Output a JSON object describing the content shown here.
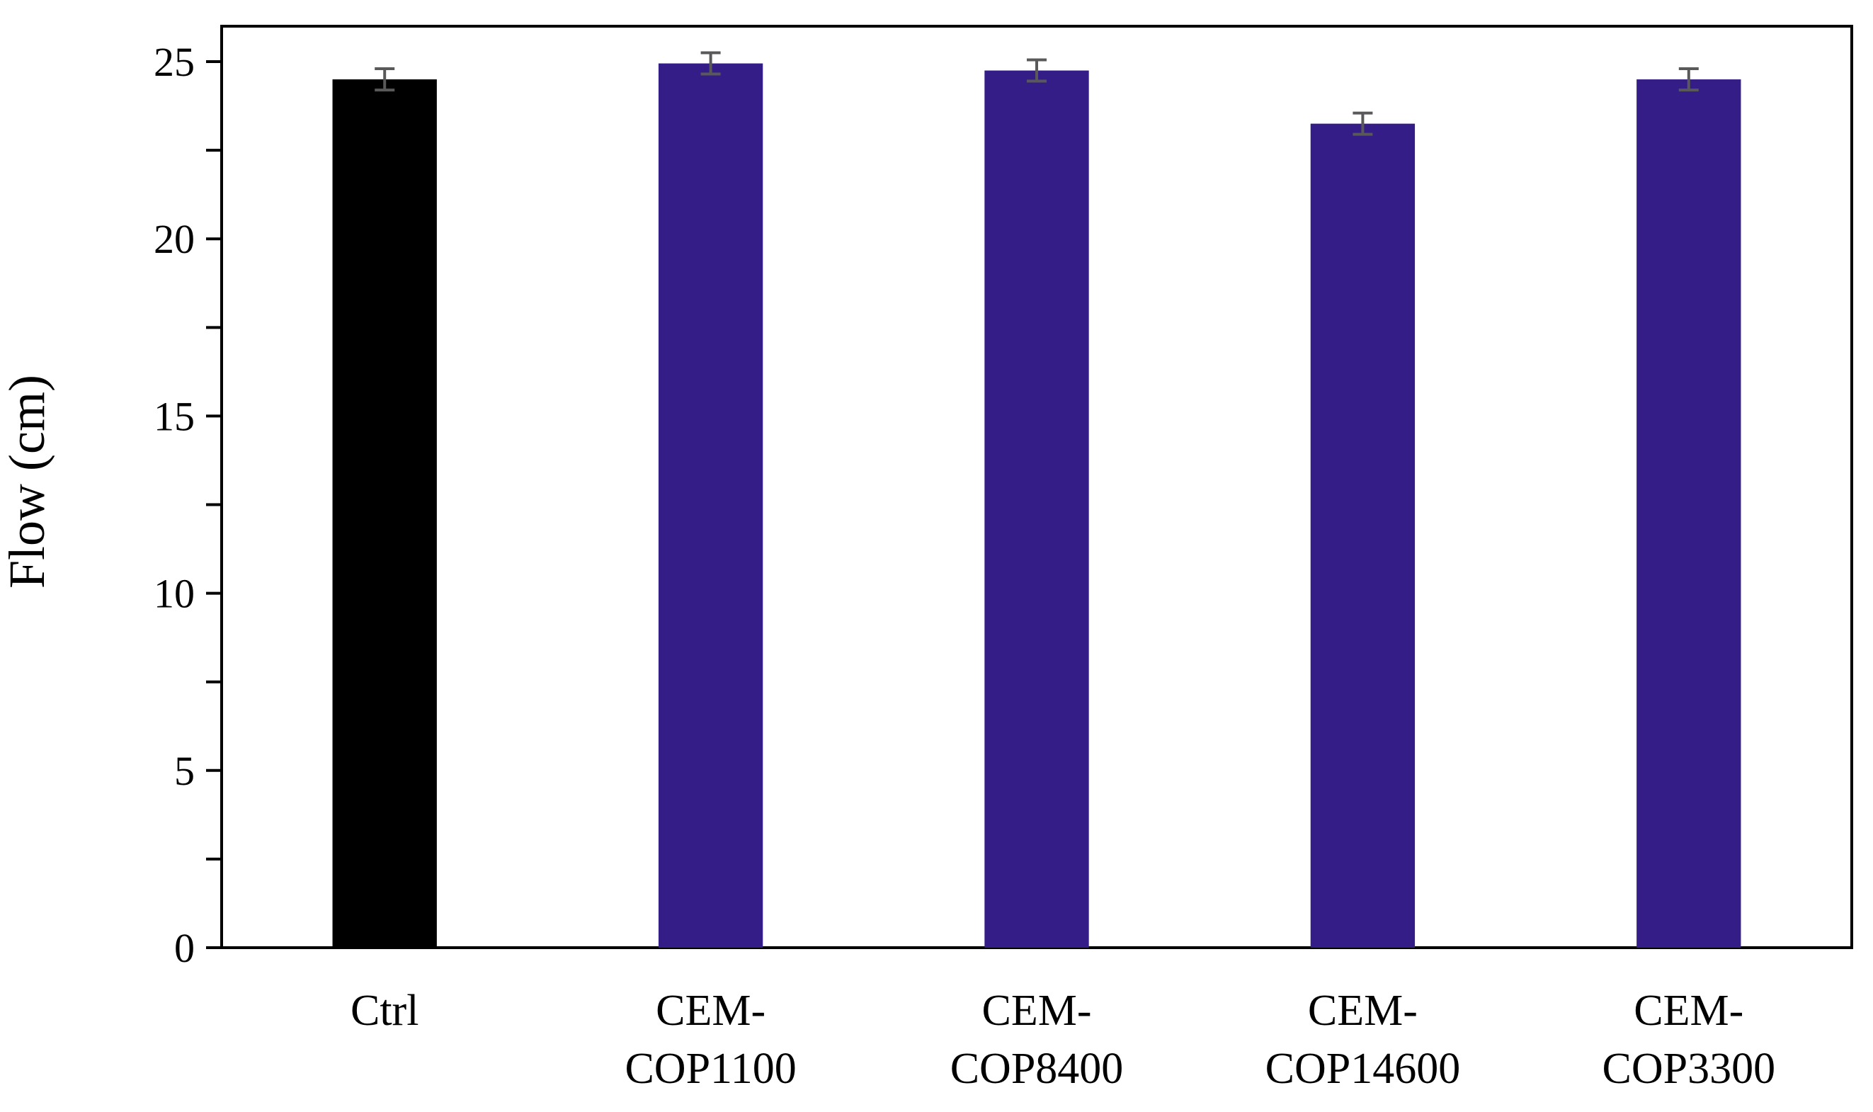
{
  "chart_data": {
    "type": "bar",
    "title": "",
    "xlabel": "",
    "ylabel": "Flow (cm)",
    "ylim": [
      0,
      26
    ],
    "yticks": [
      0,
      5,
      10,
      15,
      20,
      25
    ],
    "categories": [
      [
        "Ctrl"
      ],
      [
        "CEM-",
        "COP1100"
      ],
      [
        "CEM-",
        "COP8400"
      ],
      [
        "CEM-",
        "COP14600"
      ],
      [
        "CEM-",
        "COP3300"
      ]
    ],
    "series": [
      {
        "values": [
          24.5,
          24.95,
          24.75,
          23.25,
          24.5
        ],
        "errors": [
          0.3,
          0.3,
          0.3,
          0.3,
          0.3
        ],
        "colors": [
          "#000000",
          "#351d87",
          "#351d87",
          "#351d87",
          "#351d87"
        ]
      }
    ],
    "error_bar_color": "#595959",
    "grid": false,
    "legend": "none"
  }
}
